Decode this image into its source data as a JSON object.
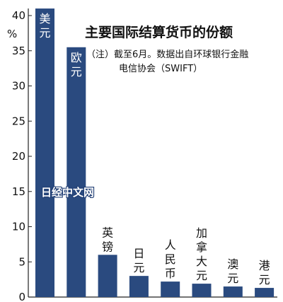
{
  "chart_data": {
    "type": "bar",
    "title": "主要国际结算货币的份额",
    "note_lines": [
      "（注）截至6月。数据出自环球银行金融",
      "电信协会（SWIFT）"
    ],
    "ylabel_unit": "%",
    "categories": [
      "美元",
      "欧元",
      "英镑",
      "日元",
      "人民币",
      "加拿大元",
      "澳元",
      "港元"
    ],
    "values": [
      41.0,
      35.5,
      6.0,
      3.0,
      2.2,
      1.9,
      1.5,
      1.3
    ],
    "ylim": [
      0,
      42
    ],
    "yticks": [
      "0",
      "5",
      "10",
      "15",
      "20",
      "25",
      "30",
      "35",
      "40"
    ],
    "grid": false,
    "bar_color": "#2a4a7f"
  },
  "watermark": "日经中文网"
}
